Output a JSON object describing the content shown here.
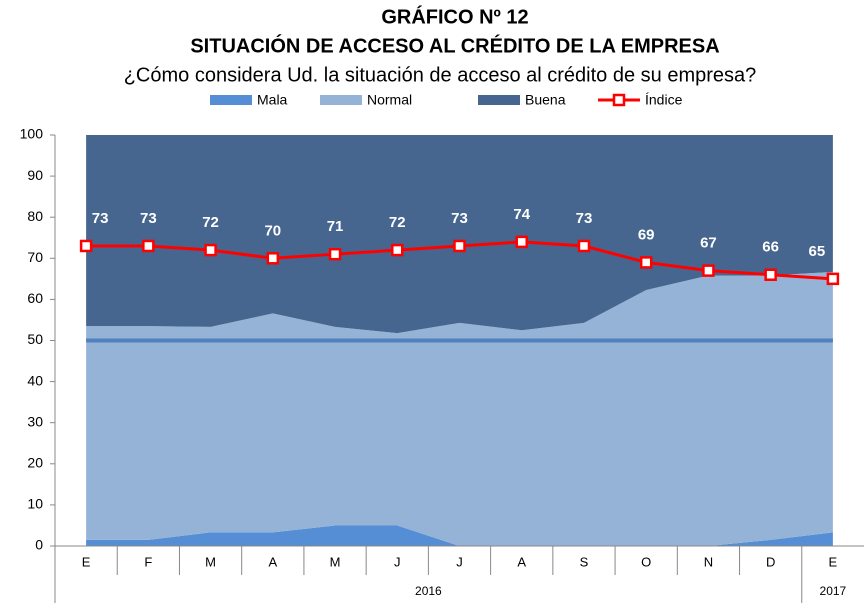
{
  "chart_data": {
    "type": "stacked_area_line",
    "title": "GRÁFICO Nº 12",
    "subtitle": "SITUACIÓN DE ACCESO AL CRÉDITO DE LA EMPRESA",
    "question": "¿Cómo considera Ud. la situación de acceso al crédito de su empresa?",
    "categories": [
      "E",
      "F",
      "M",
      "A",
      "M",
      "J",
      "J",
      "A",
      "S",
      "O",
      "N",
      "D",
      "E"
    ],
    "category_years": [
      "2016",
      "2016",
      "2016",
      "2016",
      "2016",
      "2016",
      "2016",
      "2016",
      "2016",
      "2016",
      "2016",
      "2016",
      "2017"
    ],
    "series": [
      {
        "name": "Mala",
        "color": "#558ed5",
        "values": [
          1.5,
          1.5,
          3.3,
          3.3,
          5,
          5,
          0,
          0,
          0,
          0,
          0,
          1.5,
          3.3
        ]
      },
      {
        "name": "Normal",
        "color": "#95b3d7",
        "values": [
          52,
          52,
          50,
          53.3,
          48.3,
          46.8,
          54.3,
          52.5,
          54.3,
          62.3,
          65.8,
          64.3,
          63.4
        ]
      },
      {
        "name": "Buena",
        "color": "#46668f",
        "values": [
          46.5,
          46.5,
          46.7,
          43.4,
          46.7,
          48.2,
          45.7,
          47.5,
          45.7,
          37.7,
          34.2,
          34.2,
          33.3
        ]
      },
      {
        "name": "Índice",
        "type": "line",
        "color": "#ff0000",
        "values": [
          73,
          73,
          72,
          70,
          71,
          72,
          73,
          74,
          73,
          69,
          67,
          66,
          65
        ]
      }
    ],
    "reference_line": {
      "value": 50,
      "color": "#4f81bd"
    },
    "ylim": [
      0,
      100
    ],
    "yticks": [
      0,
      10,
      20,
      30,
      40,
      50,
      60,
      70,
      80,
      90,
      100
    ],
    "grid": false
  }
}
